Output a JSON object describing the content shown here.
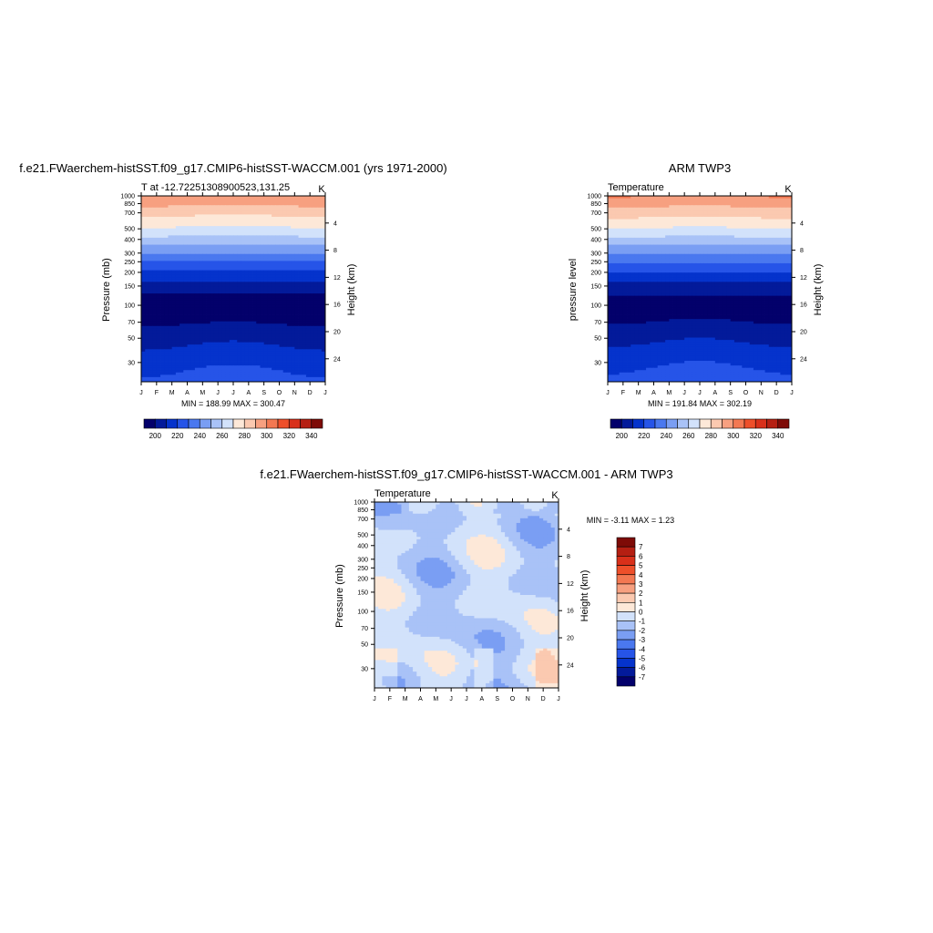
{
  "chart_data": [
    {
      "type": "heatmap",
      "title": "f.e21.FWaerchem-histSST.f09_g17.CMIP6-histSST-WACCM.001 (yrs 1971-2000)",
      "left_label": "T at -12.72251308900523,131.25",
      "units": "K",
      "ylabel": "Pressure (mb)",
      "y2label": "Height (km)",
      "stats": "MIN = 188.99 MAX = 300.47",
      "x_ticks": [
        "J",
        "F",
        "M",
        "A",
        "M",
        "J",
        "J",
        "A",
        "S",
        "O",
        "N",
        "D",
        "J"
      ],
      "y_ticks": [
        30,
        50,
        70,
        100,
        150,
        200,
        250,
        300,
        400,
        500,
        700,
        850,
        1000
      ],
      "y2_ticks": [
        24,
        20,
        16,
        12,
        8,
        4
      ],
      "ylim": [
        1000,
        20
      ],
      "colorbar_ticks": [
        200,
        220,
        240,
        260,
        280,
        300,
        320,
        340
      ],
      "colorbar_range": [
        190,
        350
      ],
      "profile_offset": 0
    },
    {
      "type": "heatmap",
      "title": "ARM TWP3",
      "left_label": "Temperature",
      "units": "K",
      "ylabel": "pressure level",
      "y2label": "Height (km)",
      "stats": "MIN = 191.84 MAX = 302.19",
      "x_ticks": [
        "J",
        "F",
        "M",
        "A",
        "M",
        "J",
        "J",
        "A",
        "S",
        "O",
        "N",
        "D",
        "J"
      ],
      "y_ticks": [
        30,
        50,
        70,
        100,
        150,
        200,
        250,
        300,
        400,
        500,
        700,
        850,
        1000
      ],
      "y2_ticks": [
        24,
        20,
        16,
        12,
        8,
        4
      ],
      "ylim": [
        1000,
        20
      ],
      "colorbar_ticks": [
        200,
        220,
        240,
        260,
        280,
        300,
        320,
        340
      ],
      "colorbar_range": [
        190,
        350
      ],
      "profile_offset": 1.2
    },
    {
      "type": "heatmap",
      "title": "f.e21.FWaerchem-histSST.f09_g17.CMIP6-histSST-WACCM.001 - ARM TWP3",
      "left_label": "Temperature",
      "units": "K",
      "ylabel": "Pressure (mb)",
      "y2label": "Height (km)",
      "stats": "MIN =  -3.11 MAX =   1.23",
      "x_ticks": [
        "J",
        "F",
        "M",
        "A",
        "M",
        "J",
        "J",
        "A",
        "S",
        "O",
        "N",
        "D",
        "J"
      ],
      "y_ticks": [
        30,
        50,
        70,
        100,
        150,
        200,
        250,
        300,
        400,
        500,
        700,
        850,
        1000
      ],
      "y2_ticks": [
        24,
        20,
        16,
        12,
        8,
        4
      ],
      "ylim": [
        1000,
        20
      ],
      "colorbar_ticks": [
        7,
        6,
        5,
        4,
        3,
        2,
        1,
        0,
        -1,
        -2,
        -3,
        -4,
        -5,
        -6,
        -7
      ],
      "colorbar_range": [
        -7.5,
        7.5
      ]
    }
  ],
  "colors": {
    "blues": [
      "#03006b",
      "#031a9a",
      "#0533cc",
      "#2654e8",
      "#4a78ef",
      "#7a9ef3",
      "#a9c2f7",
      "#d2e2fb"
    ],
    "reds": [
      "#fde8d8",
      "#fbc9b0",
      "#f7a080",
      "#f37852",
      "#ee4f2a",
      "#d9301a",
      "#b51f12",
      "#7e0b07"
    ]
  }
}
